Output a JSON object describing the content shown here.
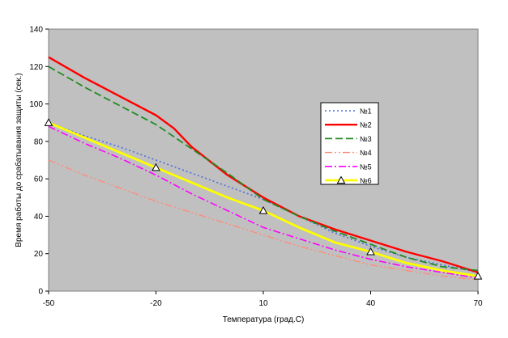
{
  "chart_data": {
    "type": "line",
    "title": "",
    "xlabel": "Температура (град.С)",
    "ylabel": "Время работы до срабатывания защиты (сек.)",
    "xlim": [
      -50,
      70
    ],
    "ylim": [
      0,
      140
    ],
    "x_ticks": [
      "-50",
      "-20",
      "10",
      "40",
      "70"
    ],
    "y_ticks": [
      "0",
      "20",
      "40",
      "60",
      "80",
      "100",
      "120",
      "140"
    ],
    "grid": false,
    "legend_position": "right",
    "plot_background": "#c0c0c0",
    "series": [
      {
        "name": "№1",
        "color": "#4a6ee0",
        "style": "dotted",
        "x": [
          -50,
          -40,
          -30,
          -20,
          -10,
          0,
          10,
          20,
          30,
          40,
          50,
          60,
          70
        ],
        "y": [
          90,
          83,
          77,
          70,
          63,
          56,
          49,
          40,
          31,
          24,
          18,
          14,
          10
        ]
      },
      {
        "name": "№2",
        "color": "#ff0000",
        "style": "solid",
        "x": [
          -50,
          -40,
          -30,
          -20,
          -15,
          -10,
          0,
          10,
          20,
          30,
          40,
          50,
          60,
          70
        ],
        "y": [
          125,
          114,
          104,
          94,
          87,
          77,
          62,
          50,
          40,
          33,
          27,
          21,
          16,
          10
        ]
      },
      {
        "name": "№3",
        "color": "#228b22",
        "style": "dashed",
        "x": [
          -50,
          -40,
          -30,
          -20,
          -10,
          0,
          10,
          20,
          30,
          40,
          50,
          60,
          70
        ],
        "y": [
          120,
          109,
          99,
          89,
          76,
          63,
          49,
          40,
          32,
          25,
          18,
          13,
          11
        ]
      },
      {
        "name": "№4",
        "color": "#ff8c7a",
        "style": "dashdotdot",
        "x": [
          -50,
          -40,
          -30,
          -20,
          -10,
          0,
          10,
          20,
          30,
          40,
          50,
          60,
          70
        ],
        "y": [
          70,
          62,
          55,
          48,
          42,
          36,
          30,
          24,
          19,
          14,
          11,
          8,
          6
        ]
      },
      {
        "name": "№5",
        "color": "#ff00ff",
        "style": "dashdot",
        "x": [
          -50,
          -40,
          -30,
          -20,
          -10,
          0,
          10,
          20,
          30,
          40,
          50,
          60,
          70
        ],
        "y": [
          88,
          79,
          71,
          62,
          52,
          43,
          34,
          28,
          22,
          17,
          13,
          10,
          7
        ]
      },
      {
        "name": "№6",
        "color": "#ffff00",
        "style": "solid",
        "marker": "triangle",
        "marker_x": [
          -50,
          -20,
          10,
          40,
          70
        ],
        "x": [
          -50,
          -40,
          -30,
          -20,
          -10,
          0,
          10,
          20,
          30,
          40,
          50,
          60,
          70
        ],
        "y": [
          90,
          82,
          74,
          66,
          58,
          50,
          43,
          34,
          26,
          21,
          15,
          11,
          8
        ]
      }
    ]
  }
}
